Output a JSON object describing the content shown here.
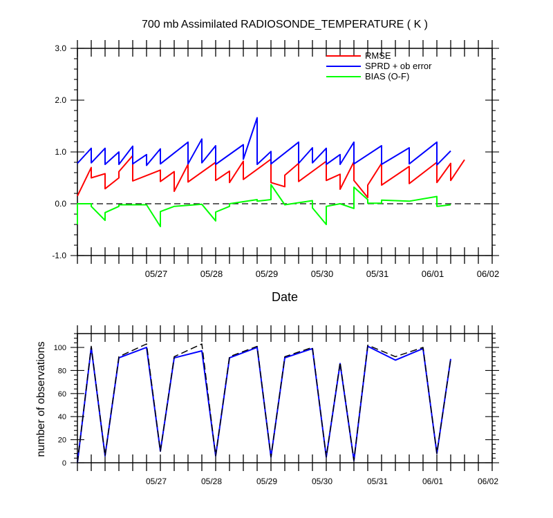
{
  "chart_data": [
    {
      "type": "line",
      "title": "700 mb Assimilated RADIOSONDE_TEMPERATURE ( K )",
      "xlabel": "Date",
      "ylabel": "",
      "x_ticks": [
        0,
        1,
        2,
        3,
        4,
        5,
        6
      ],
      "x_tick_labels": [
        "05/27",
        "05/28",
        "05/29",
        "05/30",
        "05/31",
        "06/01",
        "06/02"
      ],
      "xlim": [
        -1.5,
        6.0
      ],
      "ylim": [
        -1.0,
        3.0
      ],
      "y_ticks": [
        -1.0,
        0.0,
        1.0,
        2.0,
        3.0
      ],
      "y_tick_labels": [
        "-1.0",
        "0.0",
        "1.0",
        "2.0",
        "3.0"
      ],
      "zero_line": true,
      "legend_position": "top-right",
      "series": [
        {
          "name": "RMSE",
          "color": "#ff0000",
          "points": [
            [
              -1.5,
              0.15
            ],
            [
              -1.25,
              0.7
            ],
            [
              -1.25,
              0.5
            ],
            [
              -1.0,
              0.58
            ],
            [
              -1.0,
              0.29
            ],
            [
              -0.75,
              0.5
            ],
            [
              -0.75,
              0.62
            ],
            [
              -0.5,
              0.93
            ],
            [
              -0.5,
              0.44
            ],
            [
              0.0,
              0.65
            ],
            [
              0.0,
              0.43
            ],
            [
              0.25,
              0.62
            ],
            [
              0.25,
              0.24
            ],
            [
              0.5,
              0.76
            ],
            [
              0.5,
              0.42
            ],
            [
              1.0,
              0.8
            ],
            [
              1.0,
              0.45
            ],
            [
              1.25,
              0.63
            ],
            [
              1.25,
              0.41
            ],
            [
              1.5,
              0.82
            ],
            [
              1.5,
              0.47
            ],
            [
              2.0,
              0.86
            ],
            [
              2.0,
              0.41
            ],
            [
              2.25,
              0.33
            ],
            [
              2.25,
              0.55
            ],
            [
              2.5,
              0.78
            ],
            [
              2.5,
              0.43
            ],
            [
              3.0,
              0.82
            ],
            [
              3.0,
              0.45
            ],
            [
              3.25,
              0.57
            ],
            [
              3.25,
              0.28
            ],
            [
              3.5,
              0.81
            ],
            [
              3.5,
              0.45
            ],
            [
              3.75,
              0.12
            ],
            [
              3.75,
              0.36
            ],
            [
              4.0,
              0.78
            ],
            [
              4.0,
              0.36
            ],
            [
              4.5,
              0.72
            ],
            [
              4.5,
              0.39
            ],
            [
              5.0,
              0.8
            ],
            [
              5.0,
              0.41
            ],
            [
              5.25,
              0.78
            ],
            [
              5.25,
              0.45
            ],
            [
              5.5,
              0.85
            ]
          ]
        },
        {
          "name": "SPRD + ob error",
          "color": "#0000ff",
          "points": [
            [
              -1.5,
              0.78
            ],
            [
              -1.25,
              1.07
            ],
            [
              -1.25,
              0.79
            ],
            [
              -1.0,
              1.07
            ],
            [
              -1.0,
              0.76
            ],
            [
              -0.75,
              1.0
            ],
            [
              -0.75,
              0.76
            ],
            [
              -0.5,
              1.11
            ],
            [
              -0.5,
              0.77
            ],
            [
              -0.25,
              0.95
            ],
            [
              -0.25,
              0.74
            ],
            [
              0.0,
              1.06
            ],
            [
              0.0,
              0.77
            ],
            [
              0.5,
              1.19
            ],
            [
              0.5,
              0.77
            ],
            [
              0.75,
              1.25
            ],
            [
              0.75,
              0.79
            ],
            [
              1.0,
              1.12
            ],
            [
              1.0,
              0.76
            ],
            [
              1.5,
              1.14
            ],
            [
              1.5,
              0.86
            ],
            [
              1.75,
              1.66
            ],
            [
              1.75,
              0.76
            ],
            [
              2.0,
              1.01
            ],
            [
              2.0,
              0.77
            ],
            [
              2.5,
              1.19
            ],
            [
              2.5,
              0.78
            ],
            [
              2.75,
              1.08
            ],
            [
              2.75,
              0.79
            ],
            [
              3.0,
              1.07
            ],
            [
              3.0,
              0.76
            ],
            [
              3.25,
              0.95
            ],
            [
              3.25,
              0.76
            ],
            [
              3.5,
              1.19
            ],
            [
              3.5,
              0.77
            ],
            [
              4.0,
              1.12
            ],
            [
              4.0,
              0.76
            ],
            [
              4.5,
              1.08
            ],
            [
              4.5,
              0.77
            ],
            [
              5.0,
              1.19
            ],
            [
              5.0,
              0.75
            ],
            [
              5.25,
              1.02
            ]
          ]
        },
        {
          "name": "BIAS (O-F)",
          "color": "#00ff00",
          "points": [
            [
              -1.5,
              -0.4
            ],
            [
              -1.5,
              0.0
            ],
            [
              -1.25,
              0.0
            ],
            [
              -1.25,
              -0.05
            ],
            [
              -1.0,
              -0.32
            ],
            [
              -1.0,
              -0.17
            ],
            [
              -0.75,
              -0.05
            ],
            [
              -0.75,
              -0.02
            ],
            [
              -0.25,
              -0.02
            ],
            [
              0.0,
              -0.44
            ],
            [
              0.0,
              -0.15
            ],
            [
              0.25,
              -0.05
            ],
            [
              0.75,
              -0.01
            ],
            [
              1.0,
              -0.33
            ],
            [
              1.0,
              -0.16
            ],
            [
              1.25,
              -0.05
            ],
            [
              1.25,
              0.0
            ],
            [
              1.75,
              0.08
            ],
            [
              1.75,
              0.05
            ],
            [
              2.0,
              0.08
            ],
            [
              2.0,
              0.37
            ],
            [
              2.25,
              -0.02
            ],
            [
              2.75,
              0.06
            ],
            [
              2.75,
              -0.08
            ],
            [
              3.0,
              -0.4
            ],
            [
              3.0,
              -0.05
            ],
            [
              3.25,
              0.0
            ],
            [
              3.5,
              -0.09
            ],
            [
              3.5,
              0.32
            ],
            [
              3.75,
              0.08
            ],
            [
              3.75,
              0.01
            ],
            [
              4.0,
              0.01
            ],
            [
              4.0,
              0.07
            ],
            [
              4.25,
              0.06
            ],
            [
              4.5,
              0.05
            ],
            [
              5.0,
              0.14
            ],
            [
              5.0,
              -0.05
            ],
            [
              5.25,
              -0.02
            ]
          ]
        }
      ]
    },
    {
      "type": "line",
      "title": "",
      "xlabel": "",
      "ylabel": "number of observations",
      "x_ticks": [
        0,
        1,
        2,
        3,
        4,
        5,
        6
      ],
      "x_tick_labels": [
        "05/27",
        "05/28",
        "05/29",
        "05/30",
        "05/31",
        "06/01",
        "06/02"
      ],
      "xlim": [
        -1.5,
        6.0
      ],
      "ylim": [
        0,
        112
      ],
      "y_ticks": [
        0,
        20,
        40,
        60,
        80,
        100
      ],
      "y_tick_labels": [
        "0",
        "20",
        "40",
        "60",
        "80",
        "100"
      ],
      "series": [
        {
          "color": "#0000ff",
          "dashed": false,
          "points": [
            [
              -1.5,
              0
            ],
            [
              -1.25,
              100
            ],
            [
              -1.0,
              6
            ],
            [
              -0.75,
              91
            ],
            [
              -0.25,
              100
            ],
            [
              0.0,
              10
            ],
            [
              0.25,
              91
            ],
            [
              0.75,
              97
            ],
            [
              1.0,
              6
            ],
            [
              1.25,
              91
            ],
            [
              1.75,
              100
            ],
            [
              2.0,
              5
            ],
            [
              2.25,
              91
            ],
            [
              2.75,
              99
            ],
            [
              3.0,
              5
            ],
            [
              3.25,
              86
            ],
            [
              3.5,
              2
            ],
            [
              3.75,
              101
            ],
            [
              4.25,
              89
            ],
            [
              4.75,
              99
            ],
            [
              5.0,
              8
            ],
            [
              5.25,
              90
            ]
          ]
        },
        {
          "color": "#000000",
          "dashed": true,
          "points": [
            [
              -1.5,
              0
            ],
            [
              -1.25,
              101
            ],
            [
              -1.0,
              6
            ],
            [
              -0.75,
              92
            ],
            [
              -0.25,
              103
            ],
            [
              0.0,
              10
            ],
            [
              0.25,
              92
            ],
            [
              0.75,
              103
            ],
            [
              1.0,
              6
            ],
            [
              1.25,
              92
            ],
            [
              1.75,
              101
            ],
            [
              2.0,
              5
            ],
            [
              2.25,
              92
            ],
            [
              2.75,
              100
            ],
            [
              3.0,
              5
            ],
            [
              3.25,
              87
            ],
            [
              3.5,
              2
            ],
            [
              3.75,
              102
            ],
            [
              4.25,
              92
            ],
            [
              4.75,
              100
            ],
            [
              5.0,
              8
            ],
            [
              5.25,
              90
            ]
          ]
        }
      ]
    }
  ]
}
